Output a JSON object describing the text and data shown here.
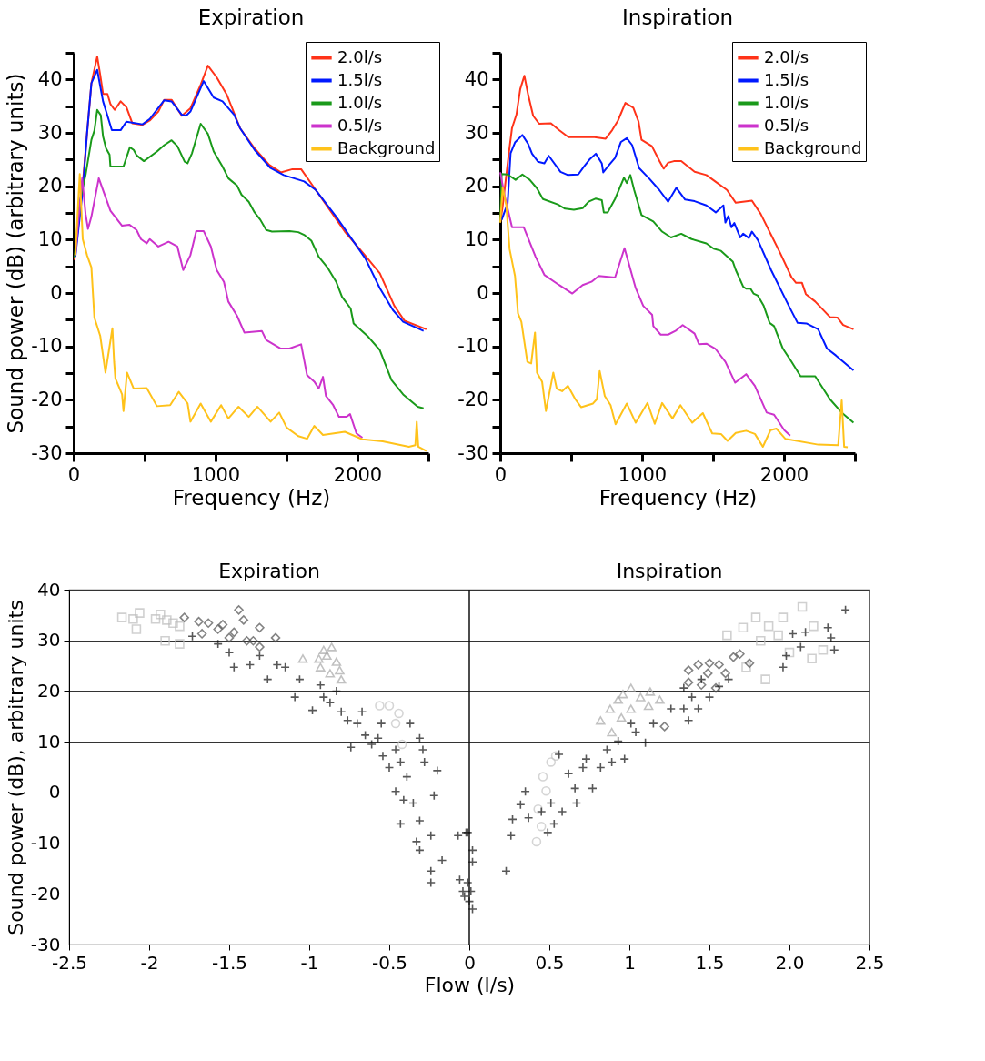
{
  "chart_data": [
    {
      "type": "line",
      "title": "Expiration",
      "xlabel": "Frequency (Hz)",
      "ylabel": "Sound power (dB) (arbitrary units)",
      "xlim": [
        0,
        2500
      ],
      "xticks": [
        0,
        {
          "value": 500,
          "label": null
        },
        1000,
        {
          "value": 1500,
          "label": null
        },
        2000,
        {
          "value": 2500,
          "label": null
        }
      ],
      "ylim": [
        -30,
        45
      ],
      "yticks": [
        -30,
        {
          "value": -25,
          "label": null
        },
        -20,
        {
          "value": -15,
          "label": null
        },
        -10,
        {
          "value": -5,
          "label": null
        },
        0,
        {
          "value": 5,
          "label": null
        },
        10,
        {
          "value": 15,
          "label": null
        },
        20,
        {
          "value": 25,
          "label": null
        },
        30,
        {
          "value": 35,
          "label": null
        },
        40,
        {
          "value": 45,
          "label": null
        }
      ],
      "legend": "top right",
      "series": [
        {
          "name": "2.0l/s",
          "color": "#ff3319",
          "x": [
            6,
            64,
            94,
            125,
            166,
            187,
            207,
            238,
            259,
            289,
            331,
            372,
            413,
            485,
            536,
            597,
            638,
            690,
            762,
            823,
            895,
            946,
            1008,
            1080,
            1172,
            1275,
            1378,
            1460,
            1542,
            1603,
            1706,
            1809,
            1911,
            2055,
            2158,
            2260,
            2332,
            2486
          ],
          "values": [
            6.2,
            20.4,
            29.8,
            39.3,
            44.3,
            40.9,
            37.3,
            37.3,
            35.4,
            34.3,
            35.9,
            34.8,
            31.8,
            31.5,
            32.3,
            34.0,
            36.2,
            36.2,
            33.2,
            34.6,
            39.0,
            42.6,
            40.4,
            37.1,
            30.9,
            27.1,
            24.0,
            22.6,
            23.2,
            23.2,
            19.3,
            15.4,
            11.5,
            7.0,
            3.7,
            -2.4,
            -5.2,
            -6.8
          ]
        },
        {
          "name": "1.5l/s",
          "color": "#0019ff",
          "x": [
            12,
            64,
            94,
            125,
            166,
            207,
            269,
            331,
            372,
            485,
            536,
            638,
            690,
            762,
            792,
            823,
            916,
            987,
            1049,
            1131,
            1172,
            1275,
            1388,
            1480,
            1624,
            1706,
            1850,
            2055,
            2158,
            2250,
            2322,
            2466
          ],
          "values": [
            6.8,
            19.3,
            29.8,
            39.3,
            41.8,
            35.9,
            30.5,
            30.5,
            32.1,
            31.6,
            32.6,
            36.1,
            35.9,
            33.4,
            33.2,
            34.0,
            39.7,
            36.6,
            35.9,
            33.4,
            30.9,
            26.8,
            23.4,
            22.1,
            20.9,
            19.3,
            14.3,
            6.5,
            0.9,
            -3.2,
            -5.4,
            -7.1
          ]
        },
        {
          "name": "1.0l/s",
          "color": "#1a9a1a",
          "x": [
            6,
            43,
            84,
            125,
            146,
            166,
            191,
            207,
            228,
            253,
            259,
            351,
            396,
            423,
            443,
            495,
            587,
            638,
            690,
            731,
            782,
            803,
            834,
            895,
            946,
            987,
            1049,
            1090,
            1152,
            1183,
            1234,
            1275,
            1316,
            1357,
            1398,
            1521,
            1583,
            1624,
            1675,
            1727,
            1788,
            1850,
            1891,
            1952,
            1973,
            2076,
            2158,
            2240,
            2322,
            2425,
            2466
          ],
          "values": [
            6.5,
            17.1,
            22.1,
            28.7,
            30.4,
            34.3,
            33.3,
            29.3,
            27.1,
            25.9,
            23.7,
            23.7,
            27.3,
            26.8,
            25.8,
            24.7,
            26.5,
            27.7,
            28.6,
            27.5,
            24.6,
            24.3,
            26.2,
            31.7,
            29.8,
            26.5,
            23.7,
            21.5,
            20.1,
            18.4,
            17.1,
            15.1,
            13.7,
            11.8,
            11.5,
            11.6,
            11.4,
            10.9,
            9.8,
            6.8,
            4.8,
            2.1,
            -0.7,
            -2.9,
            -5.7,
            -8.2,
            -10.7,
            -16.3,
            -19.0,
            -21.3,
            -21.6
          ]
        },
        {
          "name": "0.5l/s",
          "color": "#cc33cc",
          "x": [
            12,
            60,
            84,
            101,
            125,
            177,
            259,
            341,
            392,
            443,
            474,
            515,
            536,
            597,
            669,
            731,
            772,
            823,
            864,
            916,
            967,
            1008,
            1059,
            1090,
            1152,
            1203,
            1326,
            1357,
            1460,
            1521,
            1603,
            1645,
            1696,
            1727,
            1757,
            1778,
            1829,
            1870,
            1922,
            1948,
            1993,
            2035
          ],
          "values": [
            7.1,
            21.5,
            14.8,
            12.0,
            14.3,
            21.5,
            15.4,
            12.6,
            12.8,
            11.8,
            10.1,
            9.3,
            10.1,
            8.7,
            9.6,
            8.7,
            4.3,
            7.1,
            11.6,
            11.6,
            8.7,
            4.3,
            2.1,
            -1.6,
            -4.3,
            -7.4,
            -7.1,
            -8.8,
            -10.4,
            -10.4,
            -9.6,
            -15.4,
            -16.6,
            -17.9,
            -15.7,
            -19.3,
            -21.0,
            -23.2,
            -23.2,
            -22.7,
            -26.3,
            -27.1
          ]
        },
        {
          "name": "Background",
          "color": "#ffc21a",
          "x": [
            12,
            43,
            64,
            94,
            125,
            146,
            187,
            224,
            273,
            285,
            294,
            341,
            351,
            376,
            423,
            515,
            587,
            680,
            741,
            803,
            823,
            895,
            967,
            1039,
            1090,
            1162,
            1234,
            1295,
            1388,
            1449,
            1501,
            1583,
            1645,
            1696,
            1757,
            1911,
            2035,
            2178,
            2363,
            2408,
            2418,
            2429,
            2486
          ],
          "values": [
            7.1,
            22.3,
            10.1,
            7.1,
            4.8,
            -4.6,
            -8.0,
            -14.9,
            -6.6,
            -12.9,
            -16.0,
            -19.0,
            -22.1,
            -14.9,
            -17.9,
            -17.8,
            -21.2,
            -21.0,
            -18.5,
            -20.7,
            -24.1,
            -20.7,
            -24.1,
            -21.0,
            -23.5,
            -21.3,
            -23.2,
            -21.3,
            -24.1,
            -22.4,
            -25.2,
            -26.8,
            -27.3,
            -24.9,
            -26.6,
            -26.0,
            -27.4,
            -27.8,
            -28.8,
            -28.5,
            -24.1,
            -28.8,
            -29.6
          ]
        }
      ]
    },
    {
      "type": "line",
      "title": "Inspiration",
      "xlabel": "Frequency (Hz)",
      "xlim": [
        0,
        2500
      ],
      "xticks": [
        0,
        {
          "value": 500,
          "label": null
        },
        1000,
        {
          "value": 1500,
          "label": null
        },
        2000,
        {
          "value": 2500,
          "label": null
        }
      ],
      "ylim": [
        -30,
        45
      ],
      "yticks": [
        -30,
        {
          "value": -25,
          "label": null
        },
        -20,
        {
          "value": -15,
          "label": null
        },
        -10,
        {
          "value": -5,
          "label": null
        },
        0,
        {
          "value": 5,
          "label": null
        },
        10,
        {
          "value": 15,
          "label": null
        },
        20,
        {
          "value": 25,
          "label": null
        },
        30,
        {
          "value": 35,
          "label": null
        },
        40,
        {
          "value": 45,
          "label": null
        }
      ],
      "legend": "top right",
      "series": [
        {
          "name": "2.0l/s",
          "color": "#ff3319",
          "x": [
            0,
            17,
            62,
            83,
            114,
            141,
            170,
            197,
            232,
            274,
            357,
            415,
            481,
            664,
            743,
            789,
            830,
            882,
            938,
            975,
            996,
            1069,
            1121,
            1152,
            1183,
            1224,
            1276,
            1370,
            1453,
            1515,
            1598,
            1660,
            1774,
            1836,
            1909,
            1971,
            2054,
            2085,
            2127,
            2154,
            2220,
            2324,
            2376,
            2417,
            2490
          ],
          "values": [
            13.2,
            16.2,
            26.5,
            30.9,
            33.4,
            38.2,
            40.7,
            37.1,
            33.2,
            31.7,
            31.8,
            30.5,
            29.2,
            29.2,
            28.9,
            30.5,
            32.3,
            35.6,
            34.7,
            32.1,
            28.7,
            27.5,
            24.8,
            23.3,
            24.4,
            24.7,
            24.7,
            22.7,
            22.1,
            20.9,
            19.3,
            16.9,
            17.3,
            14.8,
            10.9,
            7.6,
            2.9,
            1.9,
            1.9,
            -0.2,
            -1.6,
            -4.5,
            -4.6,
            -6.0,
            -6.8
          ]
        },
        {
          "name": "1.5l/s",
          "color": "#0019ff",
          "x": [
            10,
            52,
            73,
            104,
            156,
            197,
            224,
            266,
            311,
            342,
            425,
            477,
            550,
            591,
            633,
            674,
            716,
            726,
            768,
            809,
            851,
            892,
            930,
            979,
            1048,
            1121,
            1183,
            1241,
            1303,
            1370,
            1453,
            1519,
            1573,
            1587,
            1608,
            1629,
            1650,
            1691,
            1712,
            1753,
            1774,
            1816,
            1909,
            2034,
            2096,
            2158,
            2241,
            2303,
            2366,
            2490
          ],
          "values": [
            13.7,
            16.8,
            26.2,
            28.2,
            29.6,
            27.9,
            26.1,
            24.6,
            24.3,
            25.7,
            22.7,
            22.1,
            22.2,
            23.7,
            25.1,
            26.1,
            24.3,
            22.6,
            24.0,
            25.3,
            28.3,
            29.0,
            27.7,
            23.4,
            21.5,
            19.3,
            17.1,
            19.7,
            17.5,
            17.2,
            16.4,
            15.1,
            16.4,
            13.2,
            14.4,
            12.3,
            13.1,
            10.4,
            11.1,
            10.3,
            11.5,
            9.9,
            4.3,
            -2.4,
            -5.6,
            -5.7,
            -6.8,
            -10.4,
            -11.7,
            -14.5
          ]
        },
        {
          "name": "1.0l/s",
          "color": "#1a9a1a",
          "x": [
            0,
            10,
            52,
            108,
            156,
            208,
            259,
            301,
            405,
            457,
            519,
            581,
            623,
            674,
            716,
            730,
            757,
            809,
            872,
            892,
            917,
            944,
            996,
            1079,
            1141,
            1204,
            1276,
            1349,
            1453,
            1504,
            1556,
            1639,
            1660,
            1712,
            1733,
            1764,
            1785,
            1816,
            1857,
            1899,
            1930,
            1992,
            2054,
            2117,
            2220,
            2324,
            2407,
            2490
          ],
          "values": [
            13.2,
            22.3,
            22.2,
            21.2,
            22.2,
            21.2,
            19.6,
            17.6,
            16.6,
            15.8,
            15.6,
            15.9,
            17.1,
            17.7,
            17.4,
            15.1,
            15.1,
            17.6,
            21.6,
            20.6,
            22.1,
            19.3,
            14.6,
            13.4,
            11.5,
            10.4,
            11.1,
            10.1,
            9.3,
            8.3,
            7.9,
            5.9,
            4.3,
            1.2,
            0.8,
            0.8,
            -0.1,
            -0.5,
            -2.4,
            -5.6,
            -6.2,
            -10.4,
            -12.9,
            -15.6,
            -15.6,
            -19.9,
            -22.4,
            -24.3
          ]
        },
        {
          "name": "0.5l/s",
          "color": "#cc33cc",
          "x": [
            0,
            31,
            83,
            166,
            187,
            249,
            311,
            415,
            508,
            581,
            643,
            695,
            809,
            876,
            955,
            1008,
            1071,
            1079,
            1131,
            1183,
            1235,
            1286,
            1370,
            1401,
            1453,
            1515,
            1587,
            1656,
            1733,
            1795,
            1878,
            1930,
            2002,
            2044
          ],
          "values": [
            22.6,
            18.2,
            12.3,
            12.3,
            10.9,
            6.8,
            3.4,
            1.5,
            -0.1,
            1.5,
            2.1,
            3.2,
            2.9,
            8.4,
            0.9,
            -2.4,
            -4.1,
            -6.2,
            -7.8,
            -7.8,
            -7.1,
            -6.0,
            -7.6,
            -9.6,
            -9.5,
            -10.4,
            -12.9,
            -16.8,
            -15.2,
            -17.4,
            -22.4,
            -22.8,
            -25.7,
            -26.7
          ]
        },
        {
          "name": "Background",
          "color": "#ffc21a",
          "x": [
            0,
            17,
            42,
            66,
            104,
            125,
            149,
            191,
            218,
            245,
            259,
            295,
            322,
            374,
            398,
            436,
            477,
            529,
            571,
            654,
            681,
            701,
            737,
            778,
            813,
            892,
            955,
            1038,
            1089,
            1141,
            1214,
            1270,
            1353,
            1428,
            1494,
            1556,
            1602,
            1660,
            1733,
            1795,
            1851,
            1905,
            1946,
            2009,
            2241,
            2382,
            2407,
            2424,
            2449
          ],
          "values": [
            13.2,
            19.8,
            16.5,
            8.2,
            3.2,
            -3.8,
            -5.4,
            -12.9,
            -13.2,
            -7.4,
            -14.9,
            -16.6,
            -22.1,
            -14.9,
            -17.9,
            -18.4,
            -17.4,
            -19.9,
            -21.4,
            -20.7,
            -19.9,
            -14.6,
            -19.3,
            -21.0,
            -24.6,
            -20.7,
            -24.3,
            -20.6,
            -24.5,
            -20.6,
            -23.5,
            -21.0,
            -24.3,
            -22.5,
            -26.3,
            -26.4,
            -27.7,
            -26.2,
            -25.8,
            -26.4,
            -28.8,
            -25.7,
            -25.4,
            -27.3,
            -28.4,
            -28.5,
            -20.1,
            -28.8,
            -28.9
          ]
        }
      ]
    },
    {
      "type": "scatter",
      "xlabel": "Flow (l/s)",
      "ylabel": "Sound power (dB), arbitrary units",
      "annotations": [
        "Expiration",
        "Inspiration"
      ],
      "xlim": [
        -2.5,
        2.5
      ],
      "xticks": [
        -2.5,
        -2,
        -1.5,
        -1,
        -0.5,
        0,
        0.5,
        1,
        1.5,
        {
          "value": 2,
          "label": "2.0"
        },
        2.5
      ],
      "ylim": [
        -30,
        40
      ],
      "yticks": [
        -30,
        -20,
        -10,
        0,
        10,
        20,
        30,
        40
      ],
      "grid": "y",
      "ref_lines": [
        {
          "axis": "x",
          "value": 0,
          "color": "#111111"
        }
      ],
      "series": [
        {
          "color": "#bdbdbd",
          "marker": "square",
          "x": [
            -2.17,
            -2.1,
            -2.06,
            -2.08,
            -1.96,
            -1.93,
            -1.89,
            -1.85,
            -1.81,
            -1.9,
            -1.81,
            1.61,
            1.71,
            1.79,
            1.82,
            1.87,
            1.93,
            1.96,
            2.08,
            2.15,
            2.21,
            2.14,
            1.85,
            2.0,
            1.73
          ],
          "values": [
            34.5,
            34.2,
            35.4,
            32.2,
            34.2,
            35.1,
            34.0,
            33.4,
            32.8,
            29.9,
            29.3,
            31.0,
            32.5,
            34.5,
            29.9,
            32.8,
            31.0,
            34.5,
            36.6,
            32.8,
            28.1,
            26.4,
            22.3,
            27.6,
            24.7
          ]
        },
        {
          "color": "#505050",
          "marker": "diamond",
          "x": [
            -1.78,
            -1.69,
            -1.63,
            -1.57,
            -1.54,
            -1.47,
            -1.44,
            -1.41,
            -1.39,
            -1.35,
            -1.31,
            -1.31,
            -1.21,
            -1.67,
            -1.5,
            1.37,
            1.43,
            1.5,
            1.56,
            1.6,
            1.65,
            1.69,
            1.75,
            1.45,
            1.54,
            1.37,
            1.22,
            1.49
          ],
          "values": [
            34.5,
            33.7,
            33.4,
            32.2,
            33.1,
            31.6,
            36.0,
            34.0,
            29.9,
            29.9,
            32.5,
            28.7,
            30.5,
            31.3,
            30.5,
            24.1,
            25.2,
            25.5,
            25.2,
            23.5,
            26.7,
            27.3,
            25.5,
            21.2,
            20.6,
            21.7,
            13.0,
            23.5
          ]
        },
        {
          "color": "#a8a8a8",
          "marker": "triangle",
          "x": [
            -1.04,
            -0.94,
            -0.91,
            -0.86,
            -0.83,
            -0.87,
            -0.81,
            -0.93,
            -0.89,
            -0.8,
            0.82,
            0.88,
            0.93,
            0.96,
            1.01,
            1.07,
            1.13,
            1.19,
            0.89,
            0.95,
            1.01,
            1.12
          ],
          "values": [
            26.4,
            26.4,
            28.1,
            28.7,
            25.8,
            23.5,
            24.1,
            24.7,
            27.0,
            22.3,
            14.2,
            16.5,
            18.3,
            19.4,
            20.6,
            18.8,
            19.9,
            18.3,
            11.9,
            14.8,
            16.5,
            17.1
          ]
        },
        {
          "color": "#c4c4c4",
          "marker": "circle",
          "x": [
            -0.56,
            -0.5,
            -0.44,
            -0.46,
            -0.42,
            0.42,
            0.45,
            0.46,
            0.51,
            0.54,
            0.48,
            0.43
          ],
          "values": [
            17.1,
            17.1,
            15.6,
            13.6,
            9.5,
            -9.7,
            -6.7,
            3.1,
            6.0,
            7.2,
            0.3,
            -3.3
          ]
        },
        {
          "color": "#111111",
          "marker": "cross",
          "x": [
            -1.73,
            -1.57,
            -1.5,
            -1.47,
            -1.37,
            -1.31,
            -1.26,
            -1.2,
            -1.15,
            -1.09,
            -1.06,
            -0.98,
            -0.93,
            -0.91,
            -0.87,
            -0.83,
            -0.8,
            -0.76,
            -0.74,
            -0.7,
            -0.67,
            -0.65,
            -0.61,
            -0.57,
            -0.55,
            -0.54,
            -0.5,
            -0.46,
            -0.43,
            -0.39,
            -0.37,
            -0.31,
            -0.29,
            -0.28,
            -0.2,
            -0.46,
            -0.41,
            -0.35,
            -0.22,
            -0.43,
            -0.31,
            -0.33,
            -0.31,
            -0.24,
            -0.17,
            -0.24,
            -0.24,
            -0.07,
            -0.02,
            -0.01,
            0.02,
            0.02,
            -0.01,
            0.01,
            0.02,
            -0.04,
            -0.06,
            -0.03,
            0.0,
            0.23,
            0.26,
            0.27,
            0.32,
            0.35,
            0.37,
            0.45,
            0.49,
            0.51,
            0.53,
            0.56,
            0.58,
            0.62,
            0.66,
            0.67,
            0.71,
            0.73,
            0.77,
            0.82,
            0.86,
            0.89,
            0.93,
            0.97,
            1.01,
            1.04,
            1.1,
            1.15,
            1.26,
            1.34,
            1.34,
            1.37,
            1.39,
            1.43,
            1.45,
            1.5,
            1.56,
            1.62,
            1.96,
            1.98,
            2.02,
            2.07,
            2.1,
            2.24,
            2.26,
            2.28,
            2.35
          ],
          "values": [
            30.8,
            29.3,
            27.6,
            24.7,
            25.2,
            27.0,
            22.3,
            25.2,
            24.7,
            18.8,
            22.3,
            16.2,
            21.2,
            18.8,
            17.7,
            20.0,
            15.9,
            14.2,
            8.9,
            13.6,
            15.9,
            11.3,
            9.5,
            10.7,
            13.6,
            7.2,
            4.9,
            8.4,
            6.0,
            3.1,
            13.6,
            10.7,
            8.4,
            6.0,
            4.3,
            0.2,
            -1.5,
            -2.1,
            -0.6,
            -6.2,
            -5.6,
            -9.7,
            -11.4,
            -8.5,
            -13.4,
            -15.5,
            -17.8,
            -8.5,
            -7.9,
            -7.9,
            -11.4,
            -13.7,
            -17.8,
            -19.5,
            -23.0,
            -19.5,
            -17.2,
            -20.5,
            -21.5,
            -15.5,
            -8.5,
            -5.3,
            -2.4,
            0.2,
            -5.0,
            -3.8,
            -7.9,
            -2.1,
            -6.2,
            7.5,
            -3.8,
            3.7,
            0.8,
            -2.1,
            4.9,
            6.6,
            0.8,
            4.9,
            8.4,
            6.0,
            10.1,
            6.6,
            13.6,
            11.9,
            9.8,
            13.6,
            16.5,
            20.6,
            16.5,
            14.2,
            18.8,
            16.5,
            22.3,
            18.8,
            20.9,
            22.3,
            24.7,
            27.0,
            31.3,
            28.7,
            31.6,
            32.5,
            30.5,
            28.1,
            36.0
          ]
        }
      ]
    }
  ]
}
